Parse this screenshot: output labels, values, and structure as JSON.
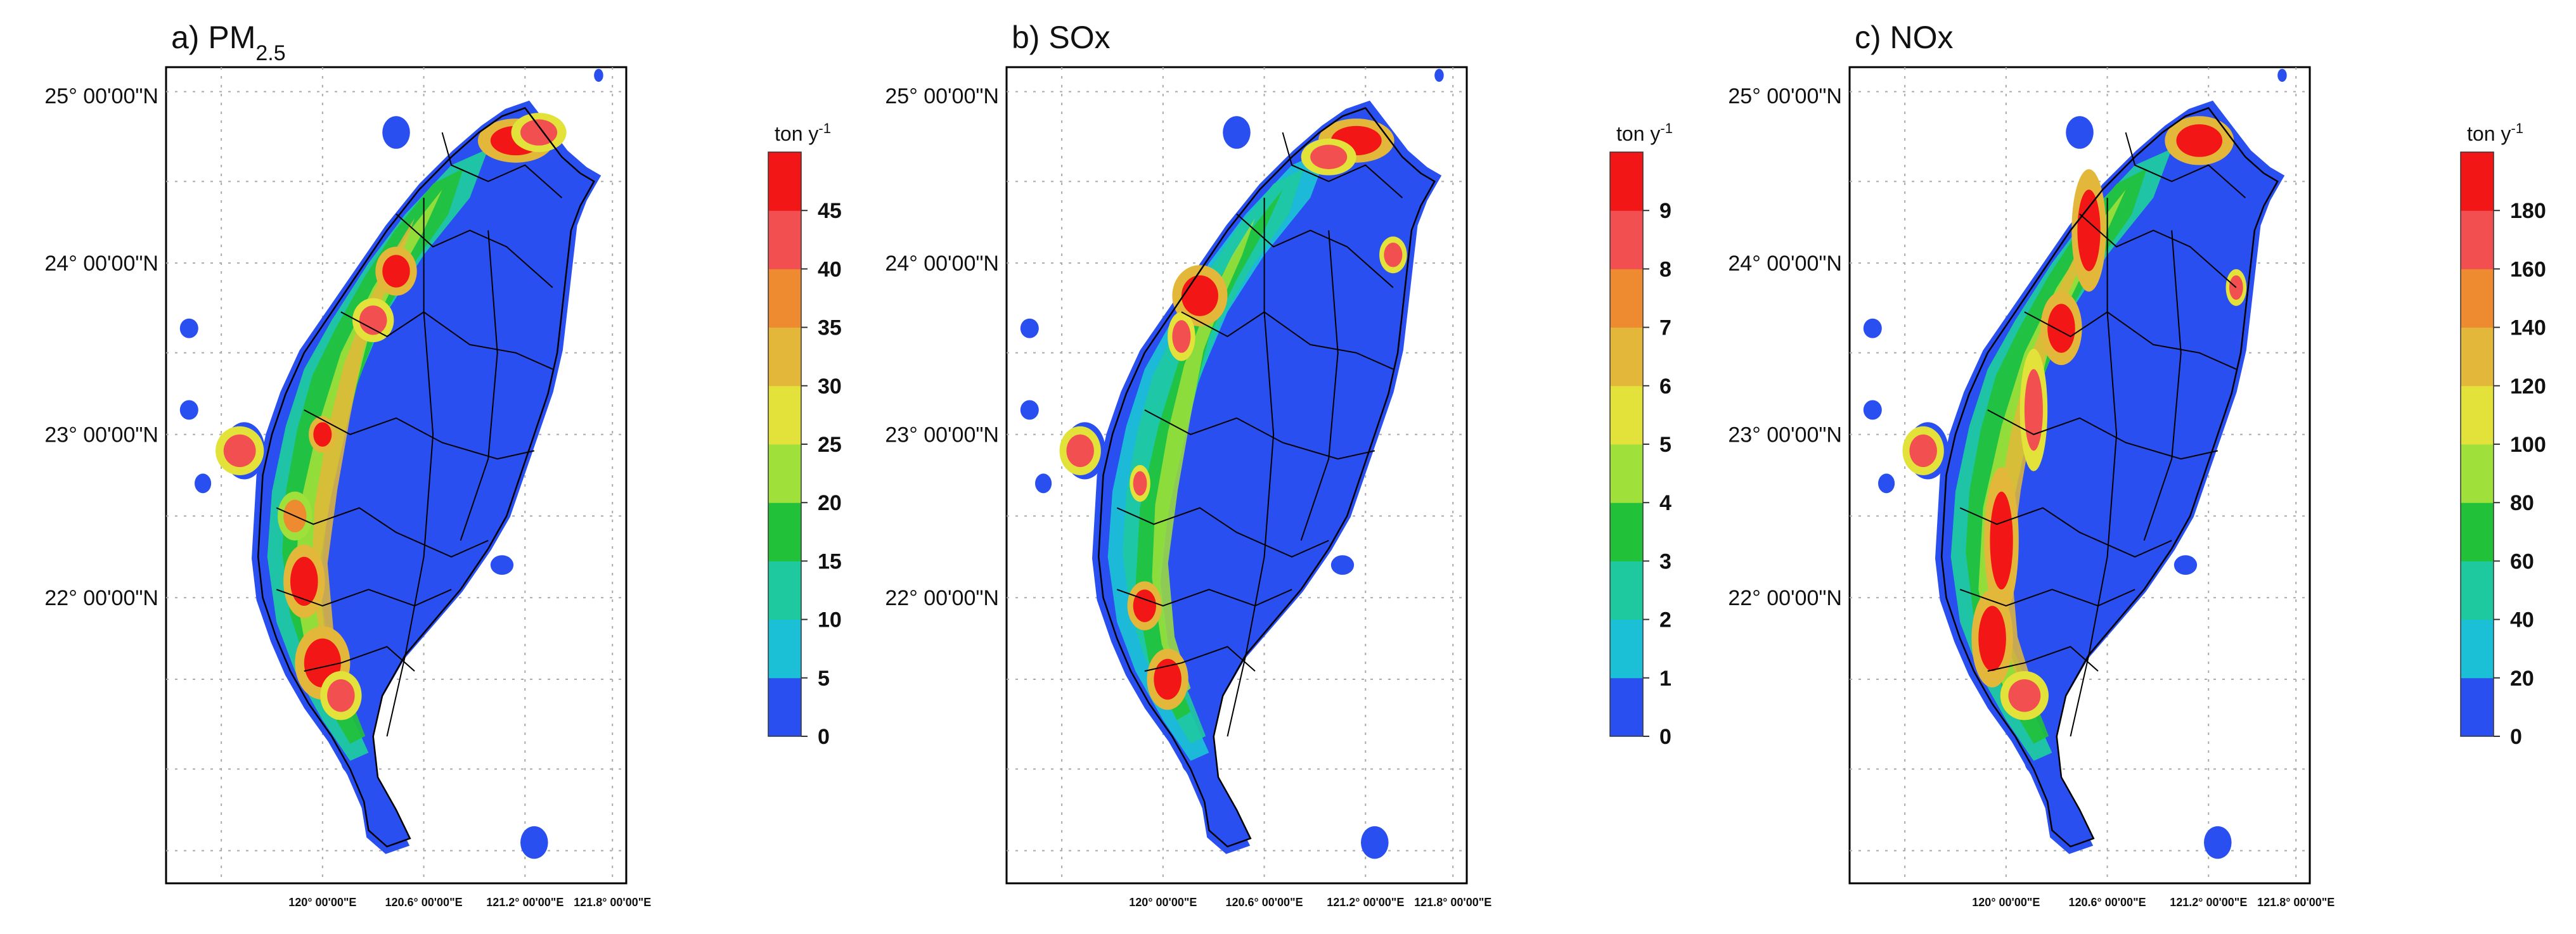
{
  "panels": [
    {
      "id": "pm25",
      "title_prefix": "a) PM",
      "title_sub": "2.5",
      "title_suffix": "",
      "unit": "ton y",
      "unit_exp": "-1",
      "colorbar_ticks": [
        "0",
        "5",
        "10",
        "15",
        "20",
        "25",
        "30",
        "35",
        "40",
        "45"
      ],
      "show_lat_labels": true
    },
    {
      "id": "sox",
      "title_prefix": "b) SOx",
      "title_sub": "",
      "title_suffix": "",
      "unit": "ton y",
      "unit_exp": "-1",
      "colorbar_ticks": [
        "0",
        "1",
        "2",
        "3",
        "4",
        "5",
        "6",
        "7",
        "8",
        "9"
      ],
      "show_lat_labels": true
    },
    {
      "id": "nox",
      "title_prefix": "c) NOx",
      "title_sub": "",
      "title_suffix": "",
      "unit": "ton y",
      "unit_exp": "-1",
      "colorbar_ticks": [
        "0",
        "20",
        "40",
        "60",
        "80",
        "100",
        "120",
        "140",
        "160",
        "180"
      ],
      "show_lat_labels": true
    }
  ],
  "lat_labels": [
    "25° 00'00\"N",
    "24° 00'00\"N",
    "23° 00'00\"N",
    "22° 00'00\"N"
  ],
  "lon_labels": [
    "120° 00'00\"E",
    "120.6° 00'00\"E",
    "121.2° 00'00\"E",
    "121.8° 00'00\"E"
  ],
  "colors": {
    "levels": [
      "#2a4ff0",
      "#1bbfd6",
      "#1fc9a0",
      "#21c23a",
      "#9fe03a",
      "#e2e23a",
      "#e3b83a",
      "#ee8a2f",
      "#f25050",
      "#f21616"
    ],
    "sea": "#ffffff",
    "outline": "#000000"
  },
  "map_extent": {
    "lon": [
      119.6,
      122.1
    ],
    "lat": [
      21.75,
      25.45
    ]
  }
}
